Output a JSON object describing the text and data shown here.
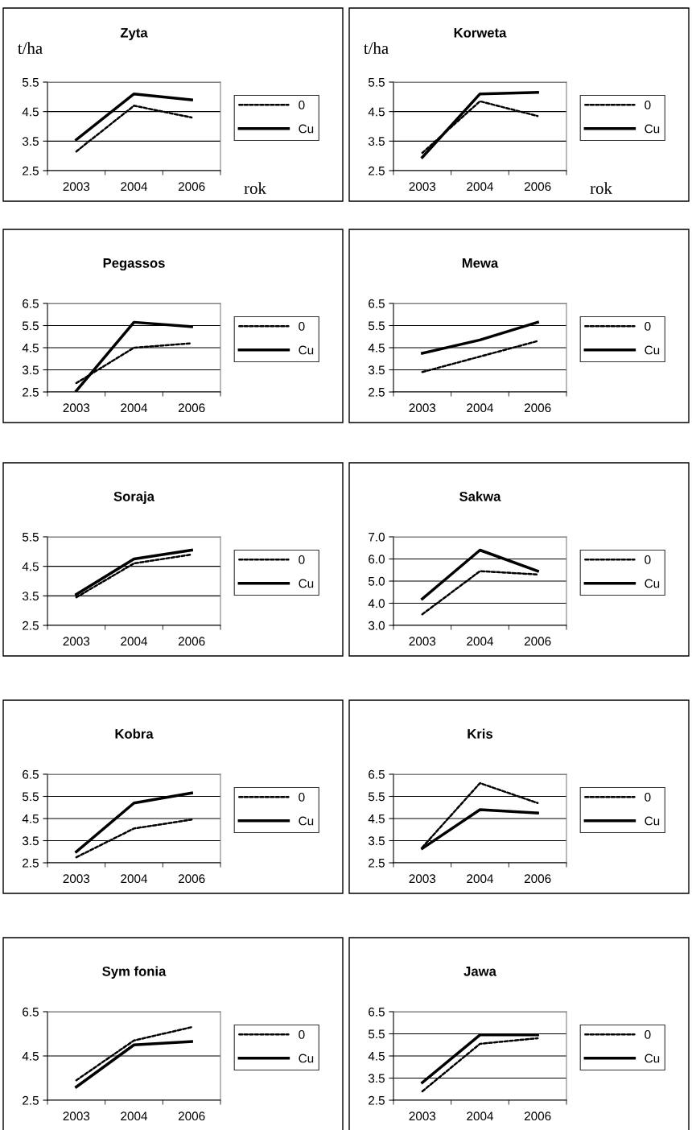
{
  "chart_data": [
    {
      "type": "line",
      "title": "Zyta",
      "ylabel": "t/ha",
      "xlabel": "rok",
      "categories": [
        "2003",
        "2004",
        "2006"
      ],
      "ylim": [
        2.5,
        5.5
      ],
      "yticks": [
        2.5,
        3.5,
        4.5,
        5.5
      ],
      "grid": "y",
      "legend": "right",
      "series": [
        {
          "name": "0",
          "color": "#000000",
          "line_style": "dashed",
          "values": [
            3.15,
            4.7,
            4.3
          ]
        },
        {
          "name": "Cu",
          "color": "#000000",
          "line_style": "solid",
          "values": [
            3.55,
            5.1,
            4.9
          ]
        }
      ]
    },
    {
      "type": "line",
      "title": "Korweta",
      "ylabel": "t/ha",
      "xlabel": "rok",
      "categories": [
        "2003",
        "2004",
        "2006"
      ],
      "ylim": [
        2.5,
        5.5
      ],
      "yticks": [
        2.5,
        3.5,
        4.5,
        5.5
      ],
      "grid": "y",
      "legend": "right",
      "series": [
        {
          "name": "0",
          "color": "#000000",
          "line_style": "dashed",
          "values": [
            3.1,
            4.85,
            4.35
          ]
        },
        {
          "name": "Cu",
          "color": "#000000",
          "line_style": "solid",
          "values": [
            2.95,
            5.1,
            5.15
          ]
        }
      ]
    },
    {
      "type": "line",
      "title": "Pegassos",
      "categories": [
        "2003",
        "2004",
        "2006"
      ],
      "ylim": [
        2.5,
        6.5
      ],
      "yticks": [
        2.5,
        3.5,
        4.5,
        5.5,
        6.5
      ],
      "grid": "y",
      "legend": "right",
      "series": [
        {
          "name": "0",
          "color": "#000000",
          "line_style": "dashed",
          "values": [
            2.9,
            4.5,
            4.7
          ]
        },
        {
          "name": "Cu",
          "color": "#000000",
          "line_style": "solid",
          "values": [
            2.55,
            5.65,
            5.45
          ]
        }
      ]
    },
    {
      "type": "line",
      "title": "Mewa",
      "categories": [
        "2003",
        "2004",
        "2006"
      ],
      "ylim": [
        2.5,
        6.5
      ],
      "yticks": [
        2.5,
        3.5,
        4.5,
        5.5,
        6.5
      ],
      "grid": "y",
      "legend": "right",
      "series": [
        {
          "name": "0",
          "color": "#000000",
          "line_style": "dashed",
          "values": [
            3.4,
            4.1,
            4.8
          ]
        },
        {
          "name": "Cu",
          "color": "#000000",
          "line_style": "solid",
          "values": [
            4.25,
            4.85,
            5.65
          ]
        }
      ]
    },
    {
      "type": "line",
      "title": "Soraja",
      "categories": [
        "2003",
        "2004",
        "2006"
      ],
      "ylim": [
        2.5,
        5.5
      ],
      "yticks": [
        2.5,
        3.5,
        4.5,
        5.5
      ],
      "grid": "y",
      "legend": "right",
      "series": [
        {
          "name": "0",
          "color": "#000000",
          "line_style": "dashed",
          "values": [
            3.45,
            4.6,
            4.9
          ]
        },
        {
          "name": "Cu",
          "color": "#000000",
          "line_style": "solid",
          "values": [
            3.55,
            4.75,
            5.05
          ]
        }
      ]
    },
    {
      "type": "line",
      "title": "Sakwa",
      "categories": [
        "2003",
        "2004",
        "2006"
      ],
      "ylim": [
        3,
        7
      ],
      "yticks": [
        {
          "value": 3,
          "label": "3.0"
        },
        {
          "value": 4,
          "label": "4.0"
        },
        {
          "value": 5,
          "label": "5.0"
        },
        {
          "value": 6,
          "label": "6.0"
        },
        {
          "value": 7,
          "label": "7.0"
        }
      ],
      "grid": "y",
      "legend": "right",
      "series": [
        {
          "name": "0",
          "color": "#000000",
          "line_style": "dashed",
          "values": [
            3.5,
            5.45,
            5.3
          ]
        },
        {
          "name": "Cu",
          "color": "#000000",
          "line_style": "solid",
          "values": [
            4.2,
            6.4,
            5.45
          ]
        }
      ]
    },
    {
      "type": "line",
      "title": "Kobra",
      "categories": [
        "2003",
        "2004",
        "2006"
      ],
      "ylim": [
        2.5,
        6.5
      ],
      "yticks": [
        2.5,
        3.5,
        4.5,
        5.5,
        6.5
      ],
      "grid": "y",
      "legend": "right",
      "series": [
        {
          "name": "0",
          "color": "#000000",
          "line_style": "dashed",
          "values": [
            2.75,
            4.05,
            4.45
          ]
        },
        {
          "name": "Cu",
          "color": "#000000",
          "line_style": "solid",
          "values": [
            3.0,
            5.2,
            5.65
          ]
        }
      ]
    },
    {
      "type": "line",
      "title": "Kris",
      "categories": [
        "2003",
        "2004",
        "2006"
      ],
      "ylim": [
        2.5,
        6.5
      ],
      "yticks": [
        2.5,
        3.5,
        4.5,
        5.5,
        6.5
      ],
      "grid": "y",
      "legend": "right",
      "series": [
        {
          "name": "0",
          "color": "#000000",
          "line_style": "dashed",
          "values": [
            3.2,
            6.1,
            5.2
          ]
        },
        {
          "name": "Cu",
          "color": "#000000",
          "line_style": "solid",
          "values": [
            3.15,
            4.9,
            4.75
          ]
        }
      ]
    },
    {
      "type": "line",
      "title": "Sym fonia",
      "categories": [
        "2003",
        "2004",
        "2006"
      ],
      "ylim": [
        2.5,
        6.5
      ],
      "yticks": [
        2.5,
        4.5,
        6.5
      ],
      "grid": "y",
      "legend": "right",
      "series": [
        {
          "name": "0",
          "color": "#000000",
          "line_style": "dashed",
          "values": [
            3.4,
            5.2,
            5.8
          ]
        },
        {
          "name": "Cu",
          "color": "#000000",
          "line_style": "solid",
          "values": [
            3.1,
            5.0,
            5.15
          ]
        }
      ]
    },
    {
      "type": "line",
      "title": "Jawa",
      "categories": [
        "2003",
        "2004",
        "2006"
      ],
      "ylim": [
        2.5,
        6.5
      ],
      "yticks": [
        2.5,
        3.5,
        4.5,
        5.5,
        6.5
      ],
      "grid": "y",
      "legend": "right",
      "series": [
        {
          "name": "0",
          "color": "#000000",
          "line_style": "dashed",
          "values": [
            2.9,
            5.05,
            5.3
          ]
        },
        {
          "name": "Cu",
          "color": "#000000",
          "line_style": "solid",
          "values": [
            3.3,
            5.45,
            5.45
          ]
        }
      ]
    }
  ]
}
